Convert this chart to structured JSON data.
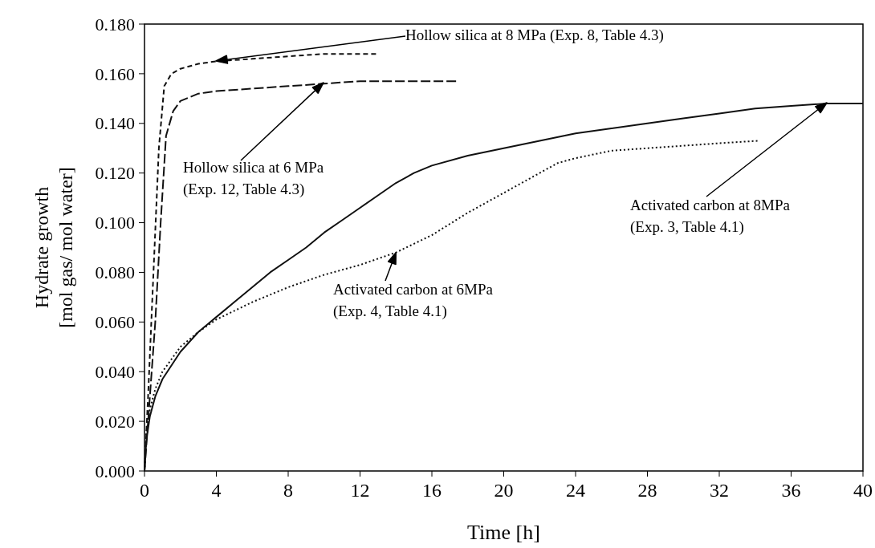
{
  "chart_data": {
    "type": "line",
    "xlabel": "Time [h]",
    "ylabel": "Hydrate growth\n[mol gas/ mol water]",
    "xlim": [
      0,
      40
    ],
    "xticks": [
      0,
      4,
      8,
      12,
      16,
      20,
      24,
      28,
      32,
      36,
      40
    ],
    "ylim": [
      0,
      0.18
    ],
    "yticks": [
      {
        "value": 0,
        "label": "0.000"
      },
      {
        "value": 0.02,
        "label": "0.020"
      },
      {
        "value": 0.04,
        "label": "0.040"
      },
      {
        "value": 0.06,
        "label": "0.060"
      },
      {
        "value": 0.08,
        "label": "0.080"
      },
      {
        "value": 0.1,
        "label": "0.100"
      },
      {
        "value": 0.12,
        "label": "0.120"
      },
      {
        "value": 0.14,
        "label": "0.140"
      },
      {
        "value": 0.16,
        "label": "0.160"
      },
      {
        "value": 0.18,
        "label": "0.180"
      }
    ],
    "grid": false,
    "series": [
      {
        "color": "#111111",
        "line_style": "dashed",
        "x": [
          0,
          0.2,
          0.5,
          0.8,
          1.1,
          1.5,
          2,
          3,
          4,
          6,
          8,
          10,
          12.9
        ],
        "values": [
          0,
          0.03,
          0.08,
          0.13,
          0.155,
          0.16,
          0.162,
          0.164,
          0.165,
          0.166,
          0.167,
          0.168,
          0.168
        ]
      },
      {
        "color": "#111111",
        "line_style": "longdash",
        "x": [
          0,
          0.3,
          0.6,
          0.9,
          1.2,
          1.6,
          2,
          3,
          4,
          6,
          8,
          10,
          12,
          14,
          17.4
        ],
        "values": [
          0,
          0.03,
          0.06,
          0.1,
          0.135,
          0.145,
          0.149,
          0.152,
          0.153,
          0.154,
          0.155,
          0.156,
          0.157,
          0.157,
          0.157
        ]
      },
      {
        "color": "#111111",
        "line_style": "solid",
        "x": [
          0,
          0.1,
          0.3,
          0.6,
          1,
          2,
          3,
          4,
          5,
          6,
          7,
          8,
          9,
          10,
          11,
          12,
          13,
          14,
          15,
          16,
          18,
          20,
          22,
          24,
          26,
          28,
          30,
          32,
          34,
          36,
          38,
          40
        ],
        "values": [
          0,
          0.012,
          0.022,
          0.03,
          0.037,
          0.048,
          0.056,
          0.062,
          0.068,
          0.074,
          0.08,
          0.085,
          0.09,
          0.096,
          0.101,
          0.106,
          0.111,
          0.116,
          0.12,
          0.123,
          0.127,
          0.13,
          0.133,
          0.136,
          0.138,
          0.14,
          0.142,
          0.144,
          0.146,
          0.147,
          0.148,
          0.148
        ]
      },
      {
        "color": "#111111",
        "line_style": "dotted",
        "x": [
          0,
          0.1,
          0.3,
          0.6,
          1,
          2,
          3,
          4,
          6,
          8,
          10,
          12,
          14,
          16,
          18,
          20,
          22,
          23,
          24,
          26,
          28,
          30,
          32,
          34.2
        ],
        "values": [
          0,
          0.015,
          0.025,
          0.033,
          0.04,
          0.05,
          0.056,
          0.061,
          0.068,
          0.074,
          0.079,
          0.083,
          0.088,
          0.095,
          0.104,
          0.112,
          0.12,
          0.124,
          0.126,
          0.129,
          0.13,
          0.131,
          0.132,
          0.133
        ]
      }
    ],
    "annotations": [
      "Hollow silica at 8 MPa (Exp. 8, Table 4.3)",
      "Hollow silica at 6 MPa\n(Exp. 12, Table 4.3)",
      "Activated carbon at 8MPa\n(Exp. 3, Table 4.1)",
      {
        "text": "Activated carbon at 6MPa\n(Exp. 4, Table 4.1)",
        "x": 14,
        "y": 0.088
      }
    ]
  }
}
